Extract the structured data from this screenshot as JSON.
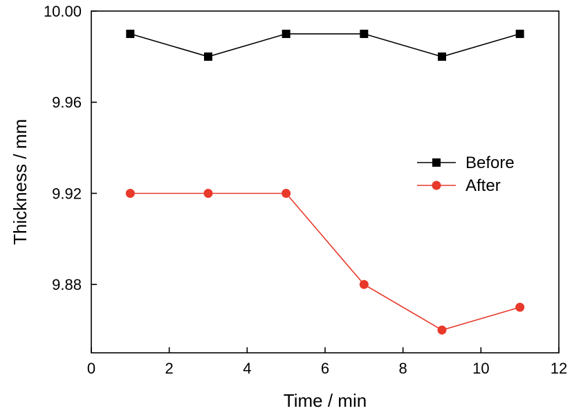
{
  "chart_data": {
    "type": "line",
    "xlabel": "Time / min",
    "ylabel": "Thickness / mm",
    "xlim": [
      0,
      12
    ],
    "ylim": [
      9.85,
      10.0
    ],
    "xticks": [
      0,
      2,
      4,
      6,
      8,
      10,
      12
    ],
    "xtick_labels": [
      "0",
      "2",
      "4",
      "6",
      "8",
      "10",
      "12"
    ],
    "yticks": [
      9.88,
      9.92,
      9.96,
      10.0
    ],
    "ytick_labels": [
      "9.88",
      "9.92",
      "9.96",
      "10.00"
    ],
    "grid": false,
    "legend_position": "right",
    "x": [
      1,
      3,
      5,
      7,
      9,
      11
    ],
    "series": [
      {
        "name": "Before",
        "color": "#000000",
        "marker": "square",
        "values": [
          9.99,
          9.98,
          9.99,
          9.99,
          9.98,
          9.99
        ]
      },
      {
        "name": "After",
        "color": "#e8392a",
        "marker": "circle",
        "values": [
          9.92,
          9.92,
          9.92,
          9.88,
          9.86,
          9.87
        ]
      }
    ]
  }
}
